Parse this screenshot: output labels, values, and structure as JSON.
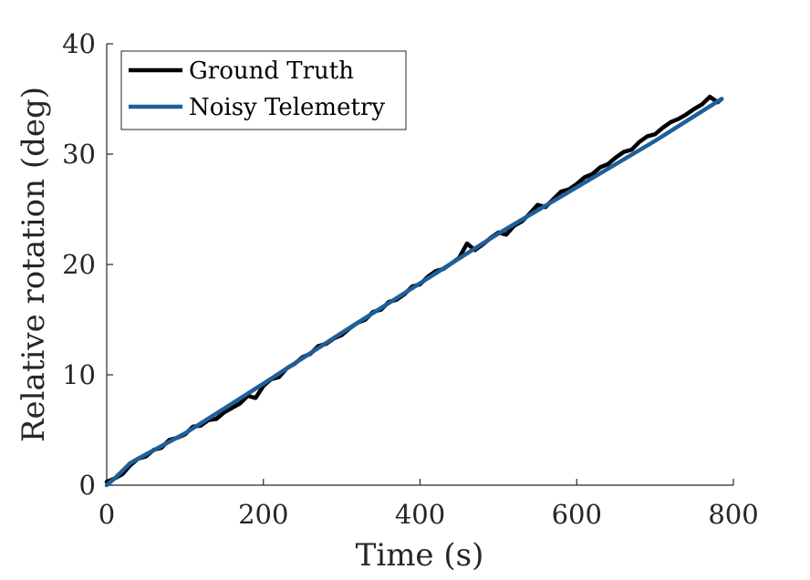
{
  "chart_data": {
    "type": "line",
    "xlabel": "Time (s)",
    "ylabel": "Relative rotation (deg)",
    "xlim": [
      0,
      800
    ],
    "ylim": [
      0,
      40
    ],
    "xticks": [
      "0",
      "200",
      "400",
      "600",
      "800"
    ],
    "yticks": [
      "0",
      "10",
      "20",
      "30",
      "40"
    ],
    "grid": false,
    "legend_position": "top-left",
    "series": [
      {
        "name": "Ground Truth",
        "color": "#000000",
        "x": [
          0,
          10,
          20,
          30,
          40,
          50,
          60,
          70,
          80,
          90,
          100,
          110,
          120,
          130,
          140,
          150,
          160,
          170,
          180,
          190,
          200,
          210,
          220,
          230,
          240,
          250,
          260,
          270,
          280,
          290,
          300,
          310,
          320,
          330,
          340,
          350,
          360,
          370,
          380,
          390,
          400,
          410,
          420,
          430,
          440,
          450,
          460,
          470,
          480,
          490,
          500,
          510,
          520,
          530,
          540,
          550,
          560,
          570,
          580,
          590,
          600,
          610,
          620,
          630,
          640,
          650,
          660,
          670,
          680,
          690,
          700,
          710,
          720,
          730,
          740,
          750,
          760,
          770,
          780,
          785
        ],
        "y": [
          0.3,
          0.6,
          1.0,
          1.8,
          2.4,
          2.6,
          3.2,
          3.4,
          4.1,
          4.3,
          4.6,
          5.3,
          5.4,
          5.9,
          6.0,
          6.6,
          7.0,
          7.4,
          8.1,
          7.9,
          9.0,
          9.6,
          9.8,
          10.6,
          11.0,
          11.6,
          11.9,
          12.6,
          12.8,
          13.3,
          13.6,
          14.2,
          14.7,
          15.0,
          15.7,
          15.9,
          16.6,
          16.8,
          17.3,
          18.0,
          18.2,
          18.9,
          19.4,
          19.6,
          20.1,
          20.6,
          21.9,
          21.3,
          21.8,
          22.4,
          22.9,
          22.7,
          23.5,
          23.9,
          24.6,
          25.4,
          25.2,
          25.9,
          26.6,
          26.8,
          27.3,
          27.9,
          28.2,
          28.8,
          29.1,
          29.7,
          30.2,
          30.4,
          31.1,
          31.6,
          31.8,
          32.4,
          32.9,
          33.2,
          33.6,
          34.1,
          34.5,
          35.2,
          34.7,
          35.0
        ]
      },
      {
        "name": "Noisy Telemetry",
        "color": "#1f5f99",
        "x": [
          0,
          10,
          20,
          30,
          40,
          100,
          200,
          300,
          400,
          500,
          600,
          700,
          785
        ],
        "y": [
          0.0,
          0.6,
          1.3,
          2.0,
          2.4,
          4.7,
          9.2,
          13.8,
          18.3,
          22.8,
          27.0,
          31.2,
          35.0
        ]
      }
    ]
  }
}
